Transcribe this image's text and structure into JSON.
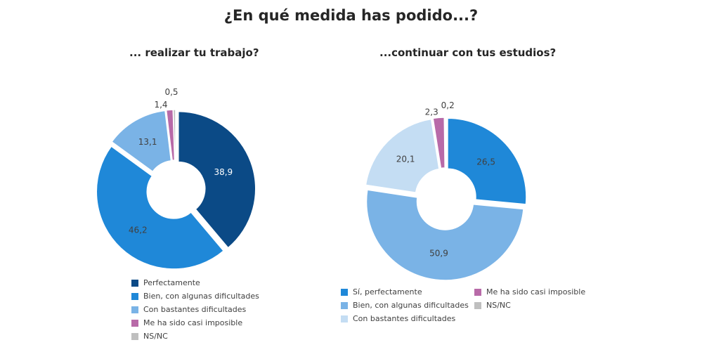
{
  "title": "¿En qué medida has podido...?",
  "chart_data": [
    {
      "type": "pie",
      "donut": true,
      "title": "... realizar tu trabajo?",
      "categories": [
        "Perfectamente",
        "Bien, con algunas dificultades",
        "Con bastantes dificultades",
        "Me ha sido casi imposible",
        "NS/NC"
      ],
      "values": [
        38.9,
        46.2,
        13.1,
        1.4,
        0.5
      ],
      "labels": [
        "38,9",
        "46,2",
        "13,1",
        "1,4",
        "0,5"
      ],
      "colors": [
        "#0b4a86",
        "#1f88d8",
        "#7ab3e6",
        "#b86aa8",
        "#bfbfbf"
      ],
      "label_colors": [
        "#ffffff",
        "#404040",
        "#404040",
        "#404040",
        "#404040"
      ],
      "legend_position": "bottom"
    },
    {
      "type": "pie",
      "donut": true,
      "title": "...continuar con tus estudios?",
      "categories": [
        "Sí, perfectamente",
        "Bien, con algunas dificultades",
        "Con bastantes dificultades",
        "Me ha sido casi imposible",
        "NS/NC"
      ],
      "values": [
        26.5,
        50.9,
        20.1,
        2.3,
        0.2
      ],
      "labels": [
        "26,5",
        "50,9",
        "20,1",
        "2,3",
        "0,2"
      ],
      "colors": [
        "#1f88d8",
        "#7ab3e6",
        "#c4ddf3",
        "#b86aa8",
        "#bfbfbf"
      ],
      "label_colors": [
        "#404040",
        "#404040",
        "#404040",
        "#404040",
        "#404040"
      ],
      "legend_position": "bottom"
    }
  ]
}
